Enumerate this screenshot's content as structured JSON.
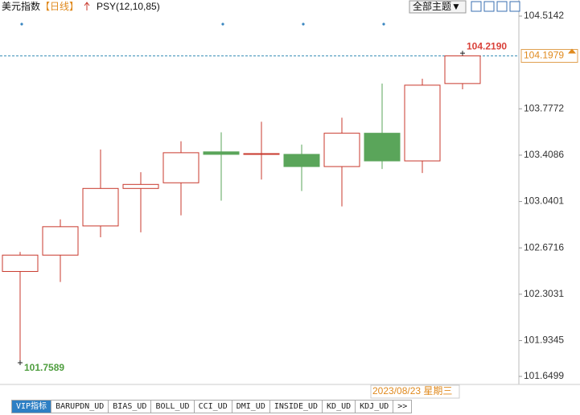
{
  "header": {
    "symbol": "美元指数",
    "period": "【日线】",
    "indicator": "PSY(12,10,85)",
    "theme_menu": "全部主题▼"
  },
  "chart_data": {
    "type": "candlestick",
    "categories": [
      null,
      null,
      null,
      null,
      null,
      null,
      null,
      null,
      null,
      null,
      null,
      null
    ],
    "open": [
      102.484,
      102.614,
      102.846,
      103.144,
      103.189,
      103.435,
      103.415,
      103.415,
      103.318,
      103.583,
      103.363,
      103.978
    ],
    "high": [
      102.639,
      102.898,
      103.454,
      103.273,
      103.519,
      103.59,
      103.674,
      103.493,
      103.706,
      103.978,
      104.016,
      104.219
    ],
    "low": [
      101.7589,
      102.4,
      102.756,
      102.795,
      102.93,
      103.047,
      103.215,
      103.124,
      103.001,
      103.299,
      103.267,
      103.932
    ],
    "close": [
      102.614,
      102.84,
      103.144,
      103.176,
      103.428,
      103.415,
      103.421,
      103.318,
      103.583,
      103.363,
      103.965,
      104.1979
    ],
    "up_color": "#c8382c",
    "down_color": "#5aa55a",
    "ylim": [
      101.6499,
      104.5142
    ],
    "yticks": [
      104.5142,
      103.7772,
      103.4086,
      103.0401,
      102.6716,
      102.3031,
      101.9345,
      101.6499
    ],
    "last_price": 104.1979,
    "annotations": [
      {
        "value": 104.219,
        "label": "104.2190",
        "color": "#d9413a"
      },
      {
        "value": 101.7589,
        "label": "101.7589",
        "color": "#4f9e3f"
      }
    ],
    "cursor_date": "2023/08/23 星期三"
  },
  "tabs": [
    "VIP指标",
    "BARUPDN_UD",
    "BIAS_UD",
    "BOLL_UD",
    "CCI_UD",
    "DMI_UD",
    "INSIDE_UD",
    "KD_UD",
    "KDJ_UD",
    ">>"
  ]
}
